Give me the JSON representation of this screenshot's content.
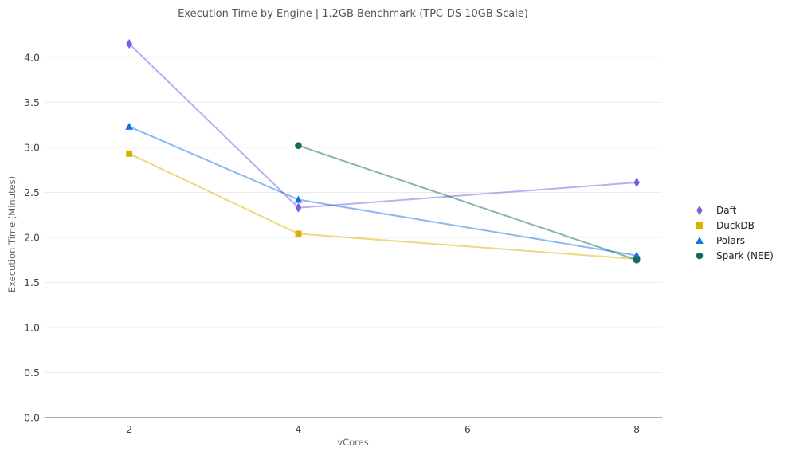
{
  "chart_data": {
    "type": "line",
    "title": "Execution Time by Engine | 1.2GB Benchmark (TPC-DS 10GB Scale)",
    "xlabel": "vCores",
    "ylabel": "Execution Time (Minutes)",
    "xlim": [
      1,
      8.3
    ],
    "ylim": [
      0,
      4.3
    ],
    "xticks": [
      2,
      4,
      6,
      8
    ],
    "yticks": [
      0.0,
      0.5,
      1.0,
      1.5,
      2.0,
      2.5,
      3.0,
      3.5,
      4.0
    ],
    "grid": true,
    "legend_position": "right",
    "series": [
      {
        "name": "Daft",
        "color": "#7b5ce6",
        "marker": "diamond",
        "points": [
          [
            2,
            4.15
          ],
          [
            4,
            2.33
          ],
          [
            8,
            2.61
          ]
        ]
      },
      {
        "name": "DuckDB",
        "color": "#d8b400",
        "marker": "square",
        "points": [
          [
            2,
            2.93
          ],
          [
            4,
            2.04
          ],
          [
            8,
            1.76
          ]
        ]
      },
      {
        "name": "Polars",
        "color": "#1273e8",
        "marker": "triangle",
        "points": [
          [
            2,
            3.23
          ],
          [
            4,
            2.42
          ],
          [
            8,
            1.8
          ]
        ]
      },
      {
        "name": "Spark (NEE)",
        "color": "#0f6e5c",
        "marker": "circle",
        "points": [
          [
            4,
            3.02
          ],
          [
            8,
            1.75
          ]
        ]
      }
    ]
  }
}
